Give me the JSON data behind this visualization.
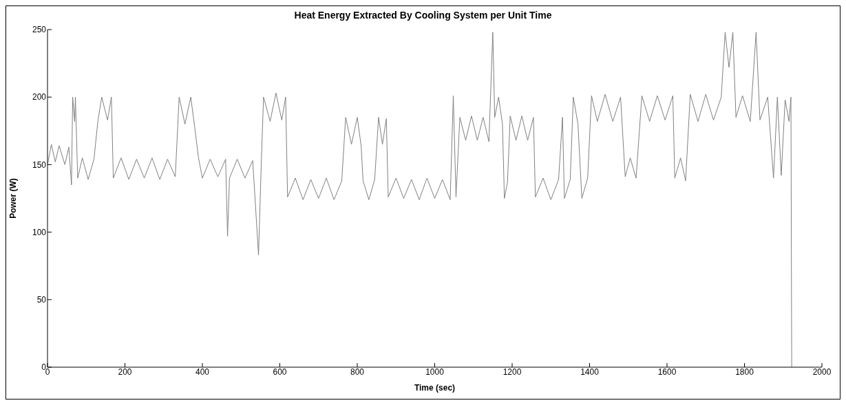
{
  "chart_data": {
    "type": "line",
    "title": "Heat Energy Extracted By Cooling System per Unit Time",
    "xlabel": "Time (sec)",
    "ylabel": "Power (W)",
    "xlim": [
      0,
      2000
    ],
    "xticks": [
      0,
      200,
      400,
      600,
      800,
      1000,
      1200,
      1400,
      1600,
      1800,
      2000
    ],
    "ylim": [
      0,
      250
    ],
    "yticks": [
      0,
      50,
      100,
      150,
      200,
      250
    ],
    "grid": false,
    "legend": false,
    "marker": "none",
    "line_style": "solid",
    "x": [
      0,
      10,
      20,
      30,
      45,
      55,
      62,
      65,
      70,
      72,
      78,
      90,
      105,
      120,
      130,
      140,
      155,
      165,
      170,
      190,
      210,
      230,
      250,
      270,
      290,
      310,
      330,
      340,
      355,
      370,
      380,
      390,
      400,
      420,
      440,
      460,
      465,
      470,
      490,
      510,
      530,
      545,
      552,
      558,
      575,
      590,
      605,
      615,
      620,
      640,
      660,
      680,
      700,
      720,
      740,
      760,
      770,
      785,
      800,
      810,
      815,
      830,
      845,
      855,
      865,
      875,
      880,
      900,
      920,
      940,
      960,
      980,
      1000,
      1020,
      1040,
      1048,
      1055,
      1065,
      1080,
      1095,
      1110,
      1125,
      1140,
      1150,
      1155,
      1165,
      1175,
      1180,
      1188,
      1195,
      1210,
      1225,
      1240,
      1255,
      1260,
      1280,
      1300,
      1320,
      1330,
      1335,
      1350,
      1358,
      1370,
      1380,
      1395,
      1405,
      1420,
      1440,
      1460,
      1480,
      1492,
      1505,
      1520,
      1535,
      1555,
      1575,
      1595,
      1615,
      1620,
      1635,
      1648,
      1660,
      1680,
      1700,
      1720,
      1740,
      1750,
      1760,
      1770,
      1778,
      1795,
      1815,
      1830,
      1840,
      1860,
      1875,
      1885,
      1895,
      1905,
      1915,
      1920,
      1922
    ],
    "series": [
      {
        "color": "#808080",
        "values": [
          150,
          165,
          152,
          164,
          150,
          163,
          135,
          200,
          182,
          200,
          140,
          155,
          139,
          154,
          182,
          200,
          183,
          200,
          140,
          155,
          139,
          154,
          140,
          155,
          139,
          154,
          141,
          200,
          180,
          200,
          178,
          155,
          140,
          154,
          141,
          154,
          97,
          140,
          154,
          140,
          153,
          83,
          150,
          200,
          182,
          203,
          183,
          200,
          126,
          140,
          124,
          139,
          125,
          140,
          124,
          138,
          185,
          165,
          185,
          164,
          138,
          124,
          139,
          185,
          165,
          184,
          126,
          140,
          125,
          139,
          124,
          140,
          125,
          139,
          124,
          201,
          126,
          185,
          168,
          186,
          168,
          185,
          167,
          248,
          185,
          200,
          180,
          125,
          137,
          186,
          168,
          186,
          168,
          185,
          126,
          140,
          124,
          139,
          185,
          125,
          139,
          200,
          180,
          125,
          140,
          201,
          182,
          202,
          182,
          200,
          141,
          155,
          140,
          201,
          182,
          201,
          183,
          201,
          140,
          155,
          138,
          202,
          182,
          202,
          183,
          200,
          248,
          222,
          248,
          185,
          201,
          182,
          248,
          183,
          200,
          140,
          200,
          142,
          198,
          182,
          200,
          0
        ]
      }
    ]
  }
}
